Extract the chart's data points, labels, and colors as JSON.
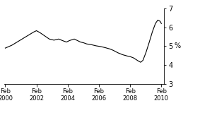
{
  "title": "",
  "ylabel": "%",
  "ylim": [
    3,
    7
  ],
  "yticks": [
    3,
    4,
    5,
    6,
    7
  ],
  "xlim": [
    2000.0,
    2010.25
  ],
  "xtick_positions": [
    2000.08,
    2002.08,
    2004.08,
    2006.08,
    2008.08,
    2010.08
  ],
  "xtick_labels": [
    "Feb\n2000",
    "Feb\n2002",
    "Feb\n2004",
    "Feb\n2006",
    "Feb\n2008",
    "Feb\n2010"
  ],
  "line_color": "#000000",
  "line_width": 0.8,
  "background_color": "#ffffff",
  "x": [
    2000.08,
    2000.5,
    2001.0,
    2001.5,
    2001.9,
    2002.08,
    2002.3,
    2002.6,
    2002.9,
    2003.2,
    2003.5,
    2003.8,
    2004.0,
    2004.2,
    2004.5,
    2004.7,
    2004.9,
    2005.1,
    2005.3,
    2005.6,
    2005.9,
    2006.2,
    2006.5,
    2006.8,
    2007.0,
    2007.3,
    2007.6,
    2007.9,
    2008.08,
    2008.3,
    2008.6,
    2008.75,
    2008.9,
    2009.1,
    2009.3,
    2009.5,
    2009.7,
    2009.85,
    2010.0,
    2010.08
  ],
  "y": [
    4.9,
    5.05,
    5.3,
    5.55,
    5.75,
    5.82,
    5.72,
    5.55,
    5.38,
    5.32,
    5.38,
    5.28,
    5.22,
    5.3,
    5.38,
    5.3,
    5.22,
    5.18,
    5.12,
    5.08,
    5.02,
    4.98,
    4.92,
    4.85,
    4.78,
    4.65,
    4.55,
    4.48,
    4.45,
    4.38,
    4.22,
    4.15,
    4.25,
    4.68,
    5.2,
    5.75,
    6.2,
    6.38,
    6.32,
    6.2
  ]
}
